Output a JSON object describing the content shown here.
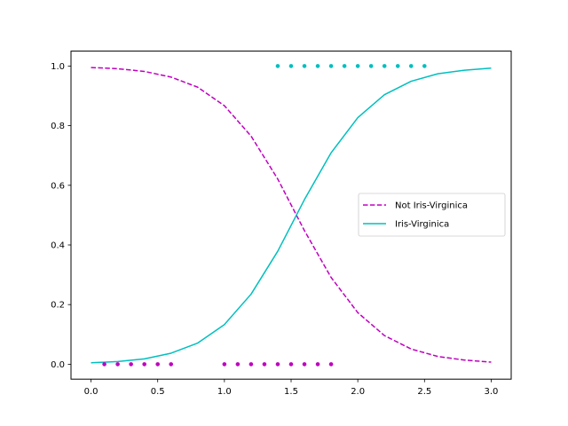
{
  "chart_data": {
    "type": "line",
    "title": "",
    "xlabel": "",
    "ylabel": "",
    "xlim": [
      -0.15,
      3.15
    ],
    "ylim": [
      -0.05,
      1.05
    ],
    "xticks": [
      0.0,
      0.5,
      1.0,
      1.5,
      2.0,
      2.5,
      3.0
    ],
    "xtick_labels": [
      "0.0",
      "0.5",
      "1.0",
      "1.5",
      "2.0",
      "2.5",
      "3.0"
    ],
    "yticks": [
      0.0,
      0.2,
      0.4,
      0.6,
      0.8,
      1.0
    ],
    "ytick_labels": [
      "0.0",
      "0.2",
      "0.4",
      "0.6",
      "0.8",
      "1.0"
    ],
    "grid": false,
    "legend_position": "right",
    "series": [
      {
        "name": "Not Iris-Virginica",
        "kind": "line",
        "style": "dashed",
        "color": "#bf00bf",
        "x": [
          0.0,
          0.2,
          0.4,
          0.6,
          0.8,
          1.0,
          1.2,
          1.4,
          1.6,
          1.8,
          2.0,
          2.2,
          2.4,
          2.6,
          2.8,
          3.0
        ],
        "y": [
          0.995,
          0.991,
          0.982,
          0.963,
          0.929,
          0.867,
          0.765,
          0.621,
          0.448,
          0.291,
          0.173,
          0.096,
          0.051,
          0.026,
          0.014,
          0.007
        ]
      },
      {
        "name": "Iris-Virginica",
        "kind": "line",
        "style": "solid",
        "color": "#00bfbf",
        "x": [
          0.0,
          0.2,
          0.4,
          0.6,
          0.8,
          1.0,
          1.2,
          1.4,
          1.6,
          1.8,
          2.0,
          2.2,
          2.4,
          2.6,
          2.8,
          3.0
        ],
        "y": [
          0.005,
          0.009,
          0.018,
          0.037,
          0.071,
          0.133,
          0.235,
          0.379,
          0.552,
          0.709,
          0.827,
          0.904,
          0.949,
          0.974,
          0.986,
          0.993
        ]
      },
      {
        "kind": "scatter",
        "color": "#bf00bf",
        "x": [
          0.1,
          0.2,
          0.3,
          0.4,
          0.5,
          0.6,
          1.0,
          1.1,
          1.2,
          1.3,
          1.4,
          1.5,
          1.6,
          1.7,
          1.8
        ],
        "y": [
          0,
          0,
          0,
          0,
          0,
          0,
          0,
          0,
          0,
          0,
          0,
          0,
          0,
          0,
          0
        ]
      },
      {
        "kind": "scatter",
        "color": "#00bfbf",
        "x": [
          1.4,
          1.5,
          1.6,
          1.7,
          1.8,
          1.9,
          2.0,
          2.1,
          2.2,
          2.3,
          2.4,
          2.5
        ],
        "y": [
          1,
          1,
          1,
          1,
          1,
          1,
          1,
          1,
          1,
          1,
          1,
          1
        ]
      }
    ]
  }
}
